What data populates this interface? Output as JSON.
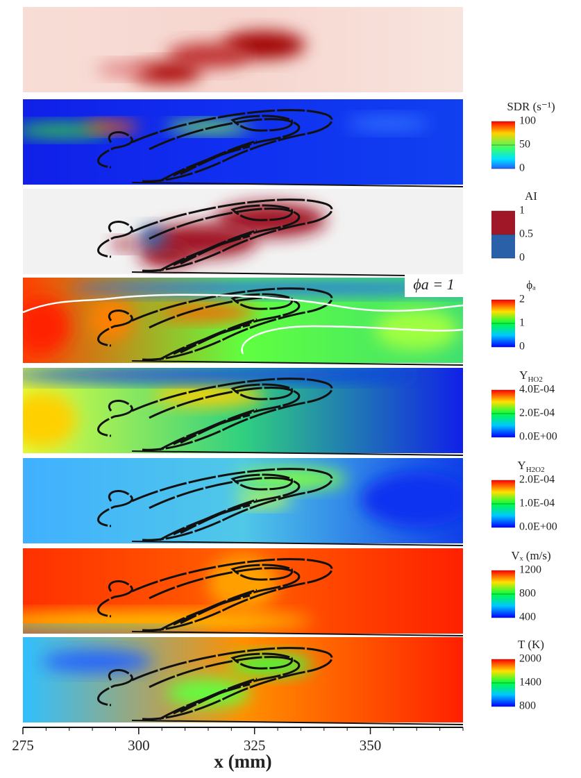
{
  "figure": {
    "annotation": "ϕa = 1",
    "x_axis": {
      "label": "x (mm)",
      "xlim": [
        275,
        370
      ],
      "xticks": [
        275,
        300,
        325,
        350
      ]
    },
    "colorbars": [
      {
        "title": "SDR (s⁻¹)",
        "range": [
          0,
          100
        ],
        "ticks": [
          0,
          50,
          100
        ]
      },
      {
        "title": "AI",
        "range": [
          0,
          1
        ],
        "ticks": [
          0,
          0.5,
          1
        ]
      },
      {
        "title": "ϕₐ",
        "range": [
          0,
          2
        ],
        "ticks": [
          0,
          1,
          2
        ]
      },
      {
        "title": "Y",
        "subscript": "HO2",
        "range": [
          0,
          0.0004
        ],
        "ticks": [
          {
            "value": 0,
            "label": "0.0E+00"
          },
          {
            "value": 0.0002,
            "label": "2.0E-04"
          },
          {
            "value": 0.0004,
            "label": "4.0E-04"
          }
        ]
      },
      {
        "title": "Y",
        "subscript": "H2O2",
        "range": [
          0,
          0.0002
        ],
        "ticks": [
          {
            "value": 0,
            "label": "0.0E+00"
          },
          {
            "value": 0.0001,
            "label": "1.0E-04"
          },
          {
            "value": 0.0002,
            "label": "2.0E-04"
          }
        ]
      },
      {
        "title": "Vₓ (m/s)",
        "range": [
          400,
          1200
        ],
        "ticks": [
          400,
          800,
          1200
        ]
      },
      {
        "title": "T (K)",
        "range": [
          800,
          2000
        ],
        "ticks": [
          800,
          1400,
          2000
        ]
      }
    ]
  }
}
